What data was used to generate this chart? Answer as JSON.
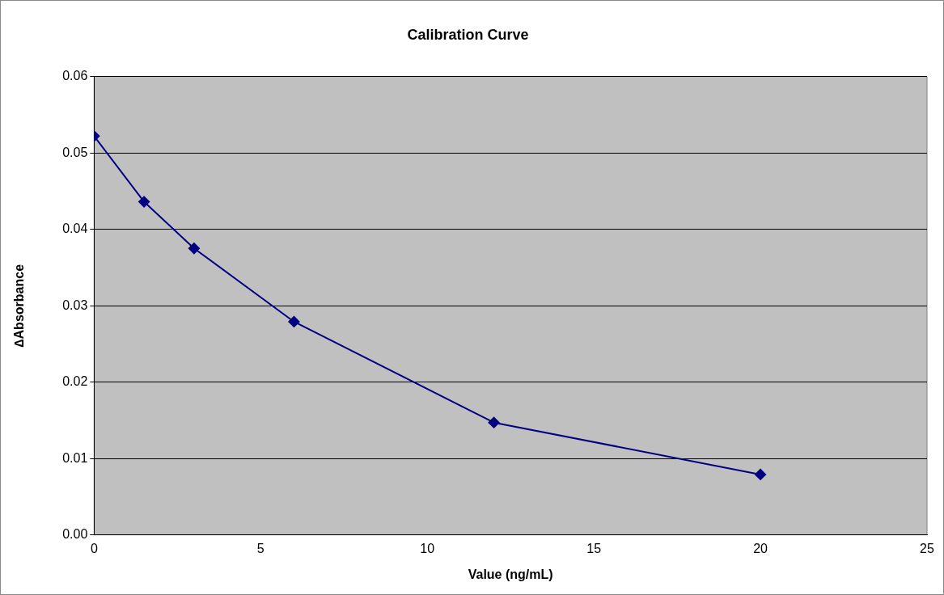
{
  "chart_data": {
    "type": "line",
    "title": "Calibration Curve",
    "xlabel": "Value (ng/mL)",
    "ylabel": "∆Absorbance",
    "x": [
      0,
      1.5,
      3,
      6,
      12,
      20
    ],
    "series": [
      {
        "color": "#000080",
        "values": [
          0.0522,
          0.0436,
          0.0375,
          0.0279,
          0.0147,
          0.0079
        ]
      }
    ],
    "xlim": [
      0,
      25
    ],
    "xticks": [
      0,
      5,
      10,
      15,
      20,
      25
    ],
    "ylim": [
      0,
      0.06
    ],
    "yticks": [
      {
        "value": 0,
        "label": "0.00"
      },
      {
        "value": 0.01,
        "label": "0.01"
      },
      {
        "value": 0.02,
        "label": "0.02"
      },
      {
        "value": 0.03,
        "label": "0.03"
      },
      {
        "value": 0.04,
        "label": "0.04"
      },
      {
        "value": 0.05,
        "label": "0.05"
      },
      {
        "value": 0.06,
        "label": "0.06"
      }
    ],
    "grid": "y",
    "legend": false,
    "marker": "diamond",
    "line_style": "solid"
  }
}
